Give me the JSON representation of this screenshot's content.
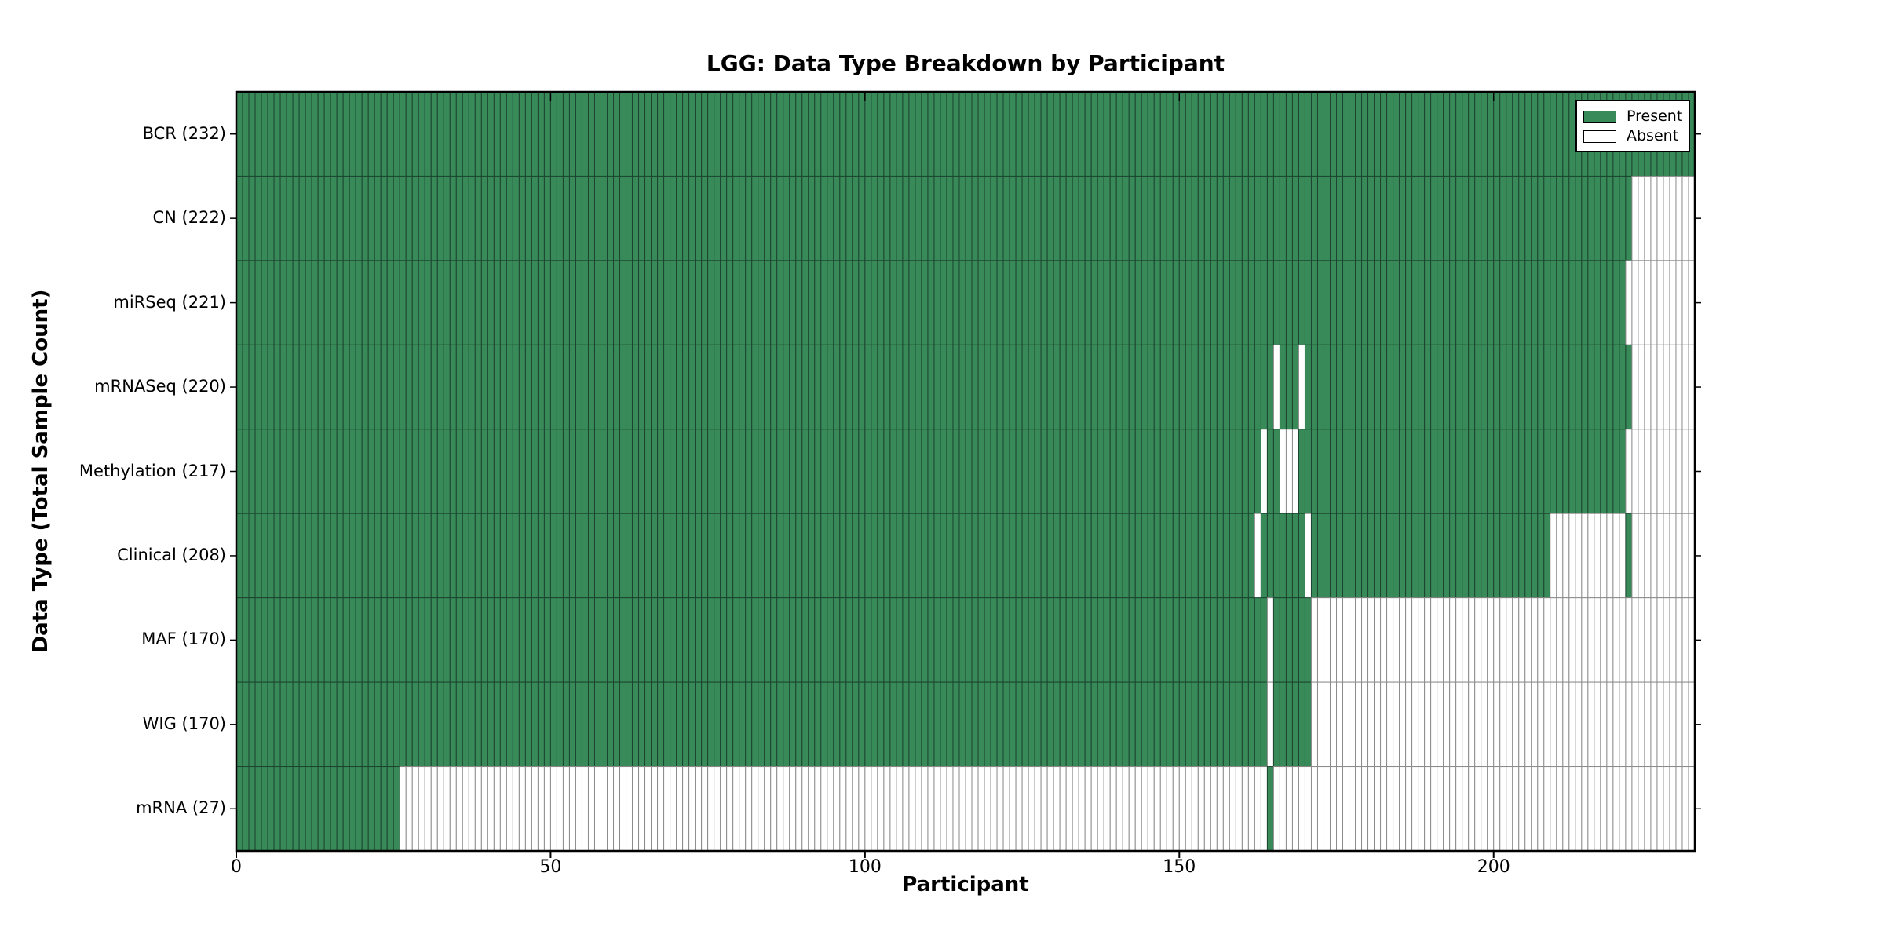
{
  "figure": {
    "title": "LGG: Data Type Breakdown by Participant",
    "background_color": "#ffffff"
  },
  "chart_data": {
    "type": "heatmap",
    "title": "LGG: Data Type Breakdown by Participant",
    "xlabel": "Participant",
    "ylabel": "Data Type (Total Sample Count)",
    "n_participants": 232,
    "x_range": [
      0,
      232
    ],
    "x_ticks": {
      "values": [
        0,
        50,
        100,
        150,
        200
      ],
      "labels": [
        "0",
        "50",
        "100",
        "150",
        "200"
      ]
    },
    "grid": false,
    "legend": {
      "position": "upper-right",
      "entries": [
        {
          "label": "Present",
          "color": "#388a58"
        },
        {
          "label": "Absent",
          "color": "#ffffff"
        }
      ]
    },
    "colors": {
      "present_fill": "#388a58",
      "present_stroke": "#1c4430",
      "absent_fill": "#ffffff",
      "absent_stroke": "#8c8c8c",
      "axis_border": "#000000"
    },
    "rows": [
      {
        "name": "BCR",
        "count": 232,
        "label": "BCR (232)",
        "present_ranges": [
          [
            0,
            231
          ]
        ]
      },
      {
        "name": "CN",
        "count": 222,
        "label": "CN (222)",
        "present_ranges": [
          [
            0,
            221
          ]
        ]
      },
      {
        "name": "miRSeq",
        "count": 221,
        "label": "miRSeq (221)",
        "present_ranges": [
          [
            0,
            220
          ]
        ]
      },
      {
        "name": "mRNASeq",
        "count": 220,
        "label": "mRNASeq (220)",
        "present_ranges": [
          [
            0,
            164
          ],
          [
            166,
            168
          ],
          [
            170,
            221
          ]
        ]
      },
      {
        "name": "Methylation",
        "count": 217,
        "label": "Methylation (217)",
        "present_ranges": [
          [
            0,
            162
          ],
          [
            164,
            165
          ],
          [
            169,
            220
          ]
        ]
      },
      {
        "name": "Clinical",
        "count": 208,
        "label": "Clinical (208)",
        "present_ranges": [
          [
            0,
            161
          ],
          [
            163,
            169
          ],
          [
            171,
            208
          ],
          [
            221,
            221
          ]
        ]
      },
      {
        "name": "MAF",
        "count": 170,
        "label": "MAF (170)",
        "present_ranges": [
          [
            0,
            163
          ],
          [
            165,
            170
          ]
        ]
      },
      {
        "name": "WIG",
        "count": 170,
        "label": "WIG (170)",
        "present_ranges": [
          [
            0,
            163
          ],
          [
            165,
            170
          ]
        ]
      },
      {
        "name": "mRNA",
        "count": 27,
        "label": "mRNA (27)",
        "present_ranges": [
          [
            0,
            25
          ],
          [
            164,
            164
          ]
        ]
      }
    ]
  }
}
